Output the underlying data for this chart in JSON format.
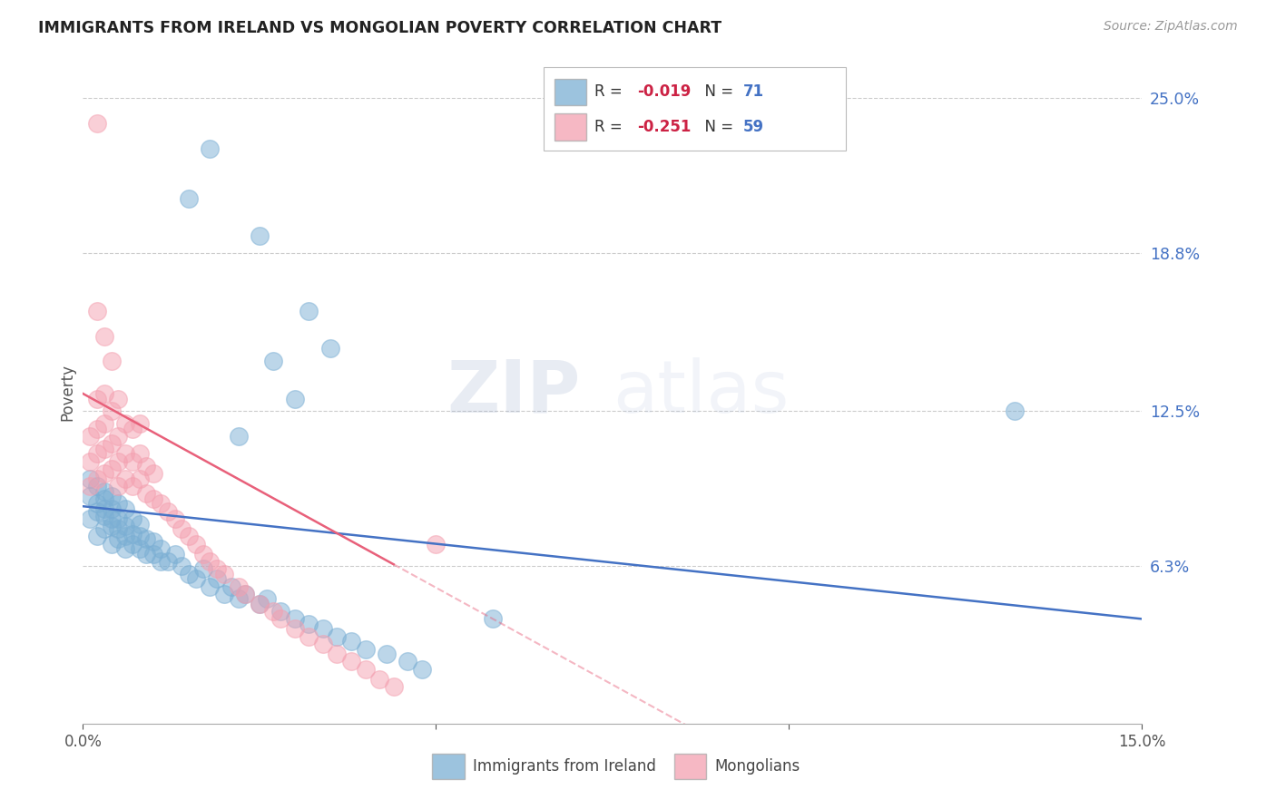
{
  "title": "IMMIGRANTS FROM IRELAND VS MONGOLIAN POVERTY CORRELATION CHART",
  "source": "Source: ZipAtlas.com",
  "ylabel": "Poverty",
  "ytick_labels": [
    "25.0%",
    "18.8%",
    "12.5%",
    "6.3%"
  ],
  "ytick_values": [
    0.25,
    0.188,
    0.125,
    0.063
  ],
  "xlim": [
    0.0,
    0.15
  ],
  "ylim": [
    0.0,
    0.265
  ],
  "legend1_R": "-0.019",
  "legend1_N": "71",
  "legend2_R": "-0.251",
  "legend2_N": "59",
  "blue_color": "#7BAFD4",
  "pink_color": "#F4A0B0",
  "blue_line_color": "#4472C4",
  "pink_line_color": "#E8607A",
  "watermark_zip": "ZIP",
  "watermark_atlas": "atlas",
  "blue_scatter_x": [
    0.001,
    0.001,
    0.001,
    0.002,
    0.002,
    0.002,
    0.002,
    0.003,
    0.003,
    0.003,
    0.003,
    0.003,
    0.004,
    0.004,
    0.004,
    0.004,
    0.004,
    0.005,
    0.005,
    0.005,
    0.005,
    0.006,
    0.006,
    0.006,
    0.006,
    0.007,
    0.007,
    0.007,
    0.008,
    0.008,
    0.008,
    0.009,
    0.009,
    0.01,
    0.01,
    0.011,
    0.011,
    0.012,
    0.013,
    0.014,
    0.015,
    0.016,
    0.017,
    0.018,
    0.019,
    0.02,
    0.021,
    0.022,
    0.023,
    0.025,
    0.026,
    0.028,
    0.03,
    0.032,
    0.034,
    0.036,
    0.038,
    0.04,
    0.043,
    0.046,
    0.048,
    0.022,
    0.025,
    0.027,
    0.03,
    0.032,
    0.035,
    0.015,
    0.018,
    0.058,
    0.132
  ],
  "blue_scatter_y": [
    0.082,
    0.091,
    0.098,
    0.075,
    0.085,
    0.088,
    0.095,
    0.078,
    0.083,
    0.086,
    0.09,
    0.093,
    0.072,
    0.079,
    0.082,
    0.086,
    0.091,
    0.074,
    0.078,
    0.082,
    0.088,
    0.07,
    0.075,
    0.079,
    0.086,
    0.072,
    0.076,
    0.082,
    0.07,
    0.075,
    0.08,
    0.068,
    0.074,
    0.068,
    0.073,
    0.065,
    0.07,
    0.065,
    0.068,
    0.063,
    0.06,
    0.058,
    0.062,
    0.055,
    0.058,
    0.052,
    0.055,
    0.05,
    0.052,
    0.048,
    0.05,
    0.045,
    0.042,
    0.04,
    0.038,
    0.035,
    0.033,
    0.03,
    0.028,
    0.025,
    0.022,
    0.115,
    0.195,
    0.145,
    0.13,
    0.165,
    0.15,
    0.21,
    0.23,
    0.042,
    0.125
  ],
  "pink_scatter_x": [
    0.001,
    0.001,
    0.001,
    0.002,
    0.002,
    0.002,
    0.002,
    0.003,
    0.003,
    0.003,
    0.003,
    0.004,
    0.004,
    0.004,
    0.005,
    0.005,
    0.005,
    0.005,
    0.006,
    0.006,
    0.006,
    0.007,
    0.007,
    0.007,
    0.008,
    0.008,
    0.008,
    0.009,
    0.009,
    0.01,
    0.01,
    0.011,
    0.012,
    0.013,
    0.014,
    0.015,
    0.016,
    0.017,
    0.018,
    0.019,
    0.02,
    0.022,
    0.023,
    0.025,
    0.027,
    0.028,
    0.03,
    0.032,
    0.034,
    0.036,
    0.038,
    0.04,
    0.042,
    0.044,
    0.002,
    0.003,
    0.004,
    0.05,
    0.002
  ],
  "pink_scatter_y": [
    0.095,
    0.105,
    0.115,
    0.098,
    0.108,
    0.118,
    0.13,
    0.1,
    0.11,
    0.12,
    0.132,
    0.102,
    0.112,
    0.125,
    0.095,
    0.105,
    0.115,
    0.13,
    0.098,
    0.108,
    0.12,
    0.095,
    0.105,
    0.118,
    0.098,
    0.108,
    0.12,
    0.092,
    0.103,
    0.09,
    0.1,
    0.088,
    0.085,
    0.082,
    0.078,
    0.075,
    0.072,
    0.068,
    0.065,
    0.062,
    0.06,
    0.055,
    0.052,
    0.048,
    0.045,
    0.042,
    0.038,
    0.035,
    0.032,
    0.028,
    0.025,
    0.022,
    0.018,
    0.015,
    0.165,
    0.155,
    0.145,
    0.072,
    0.24
  ]
}
